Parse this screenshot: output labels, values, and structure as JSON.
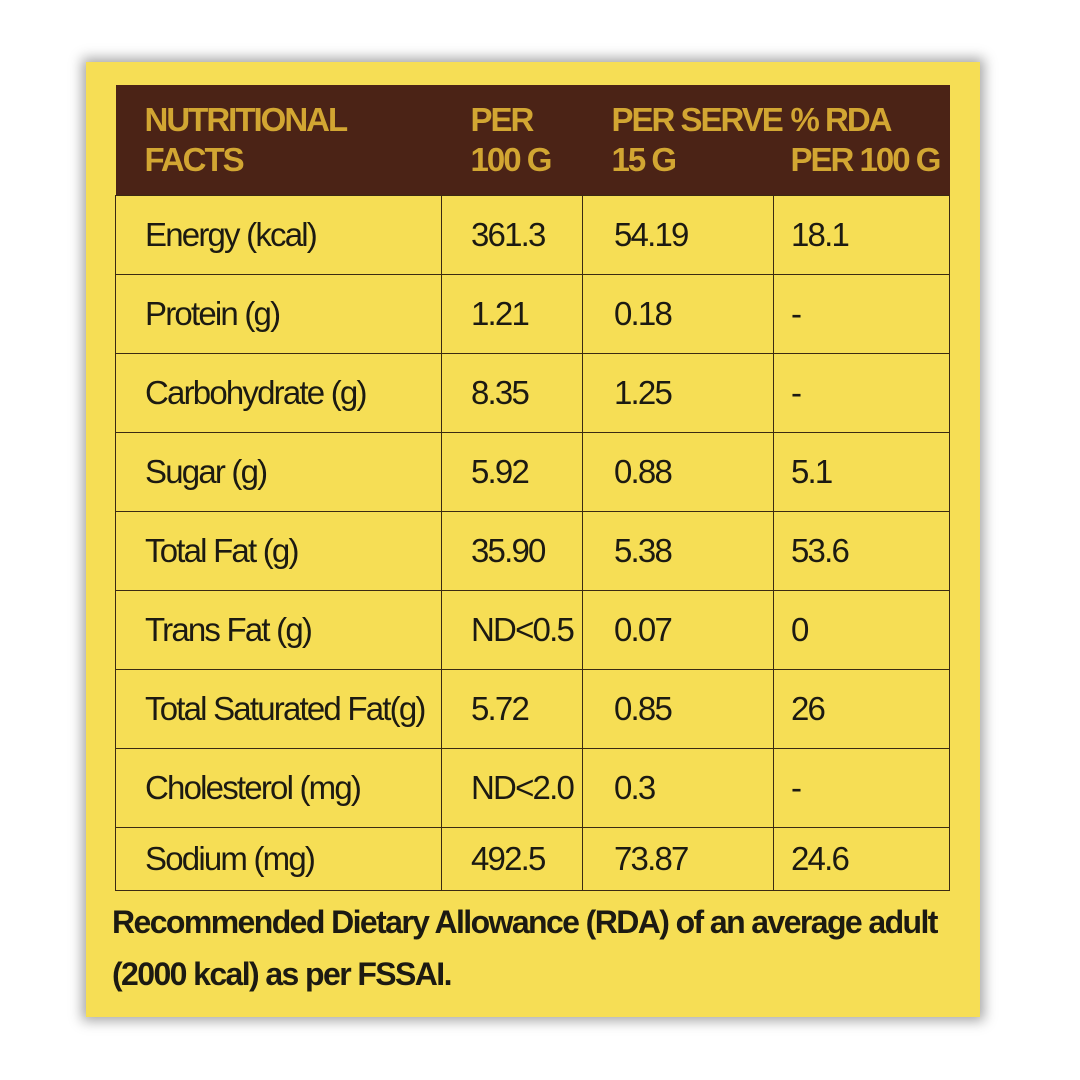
{
  "table": {
    "headers": [
      [
        "NUTRITIONAL",
        "FACTS"
      ],
      [
        "PER",
        "100 G"
      ],
      [
        "PER SERVE",
        "15 G"
      ],
      [
        "% RDA",
        "PER 100 G"
      ]
    ],
    "rows": [
      [
        "Energy (kcal)",
        "361.3",
        "54.19",
        "18.1"
      ],
      [
        "Protein (g)",
        "1.21",
        "0.18",
        "-"
      ],
      [
        "Carbohydrate (g)",
        "8.35",
        "1.25",
        "-"
      ],
      [
        "Sugar (g)",
        "5.92",
        "0.88",
        "5.1"
      ],
      [
        "Total Fat (g)",
        "35.90",
        "5.38",
        "53.6"
      ],
      [
        "Trans Fat (g)",
        "ND<0.5",
        "0.07",
        "0"
      ],
      [
        "Total Saturated Fat(g)",
        "5.72",
        "0.85",
        "26"
      ],
      [
        "Cholesterol (mg)",
        "ND<2.0",
        "0.3",
        "-"
      ],
      [
        "Sodium (mg)",
        "492.5",
        "73.87",
        "24.6"
      ]
    ]
  },
  "footnote": {
    "line1": "Recommended Dietary Allowance (RDA) of an average adult",
    "line2": "(2000 kcal) as per FSSAI."
  },
  "colors": {
    "card_background": "#f6de55",
    "header_background": "#4b2316",
    "header_text": "#d2a632",
    "body_text": "#1c1a12"
  }
}
